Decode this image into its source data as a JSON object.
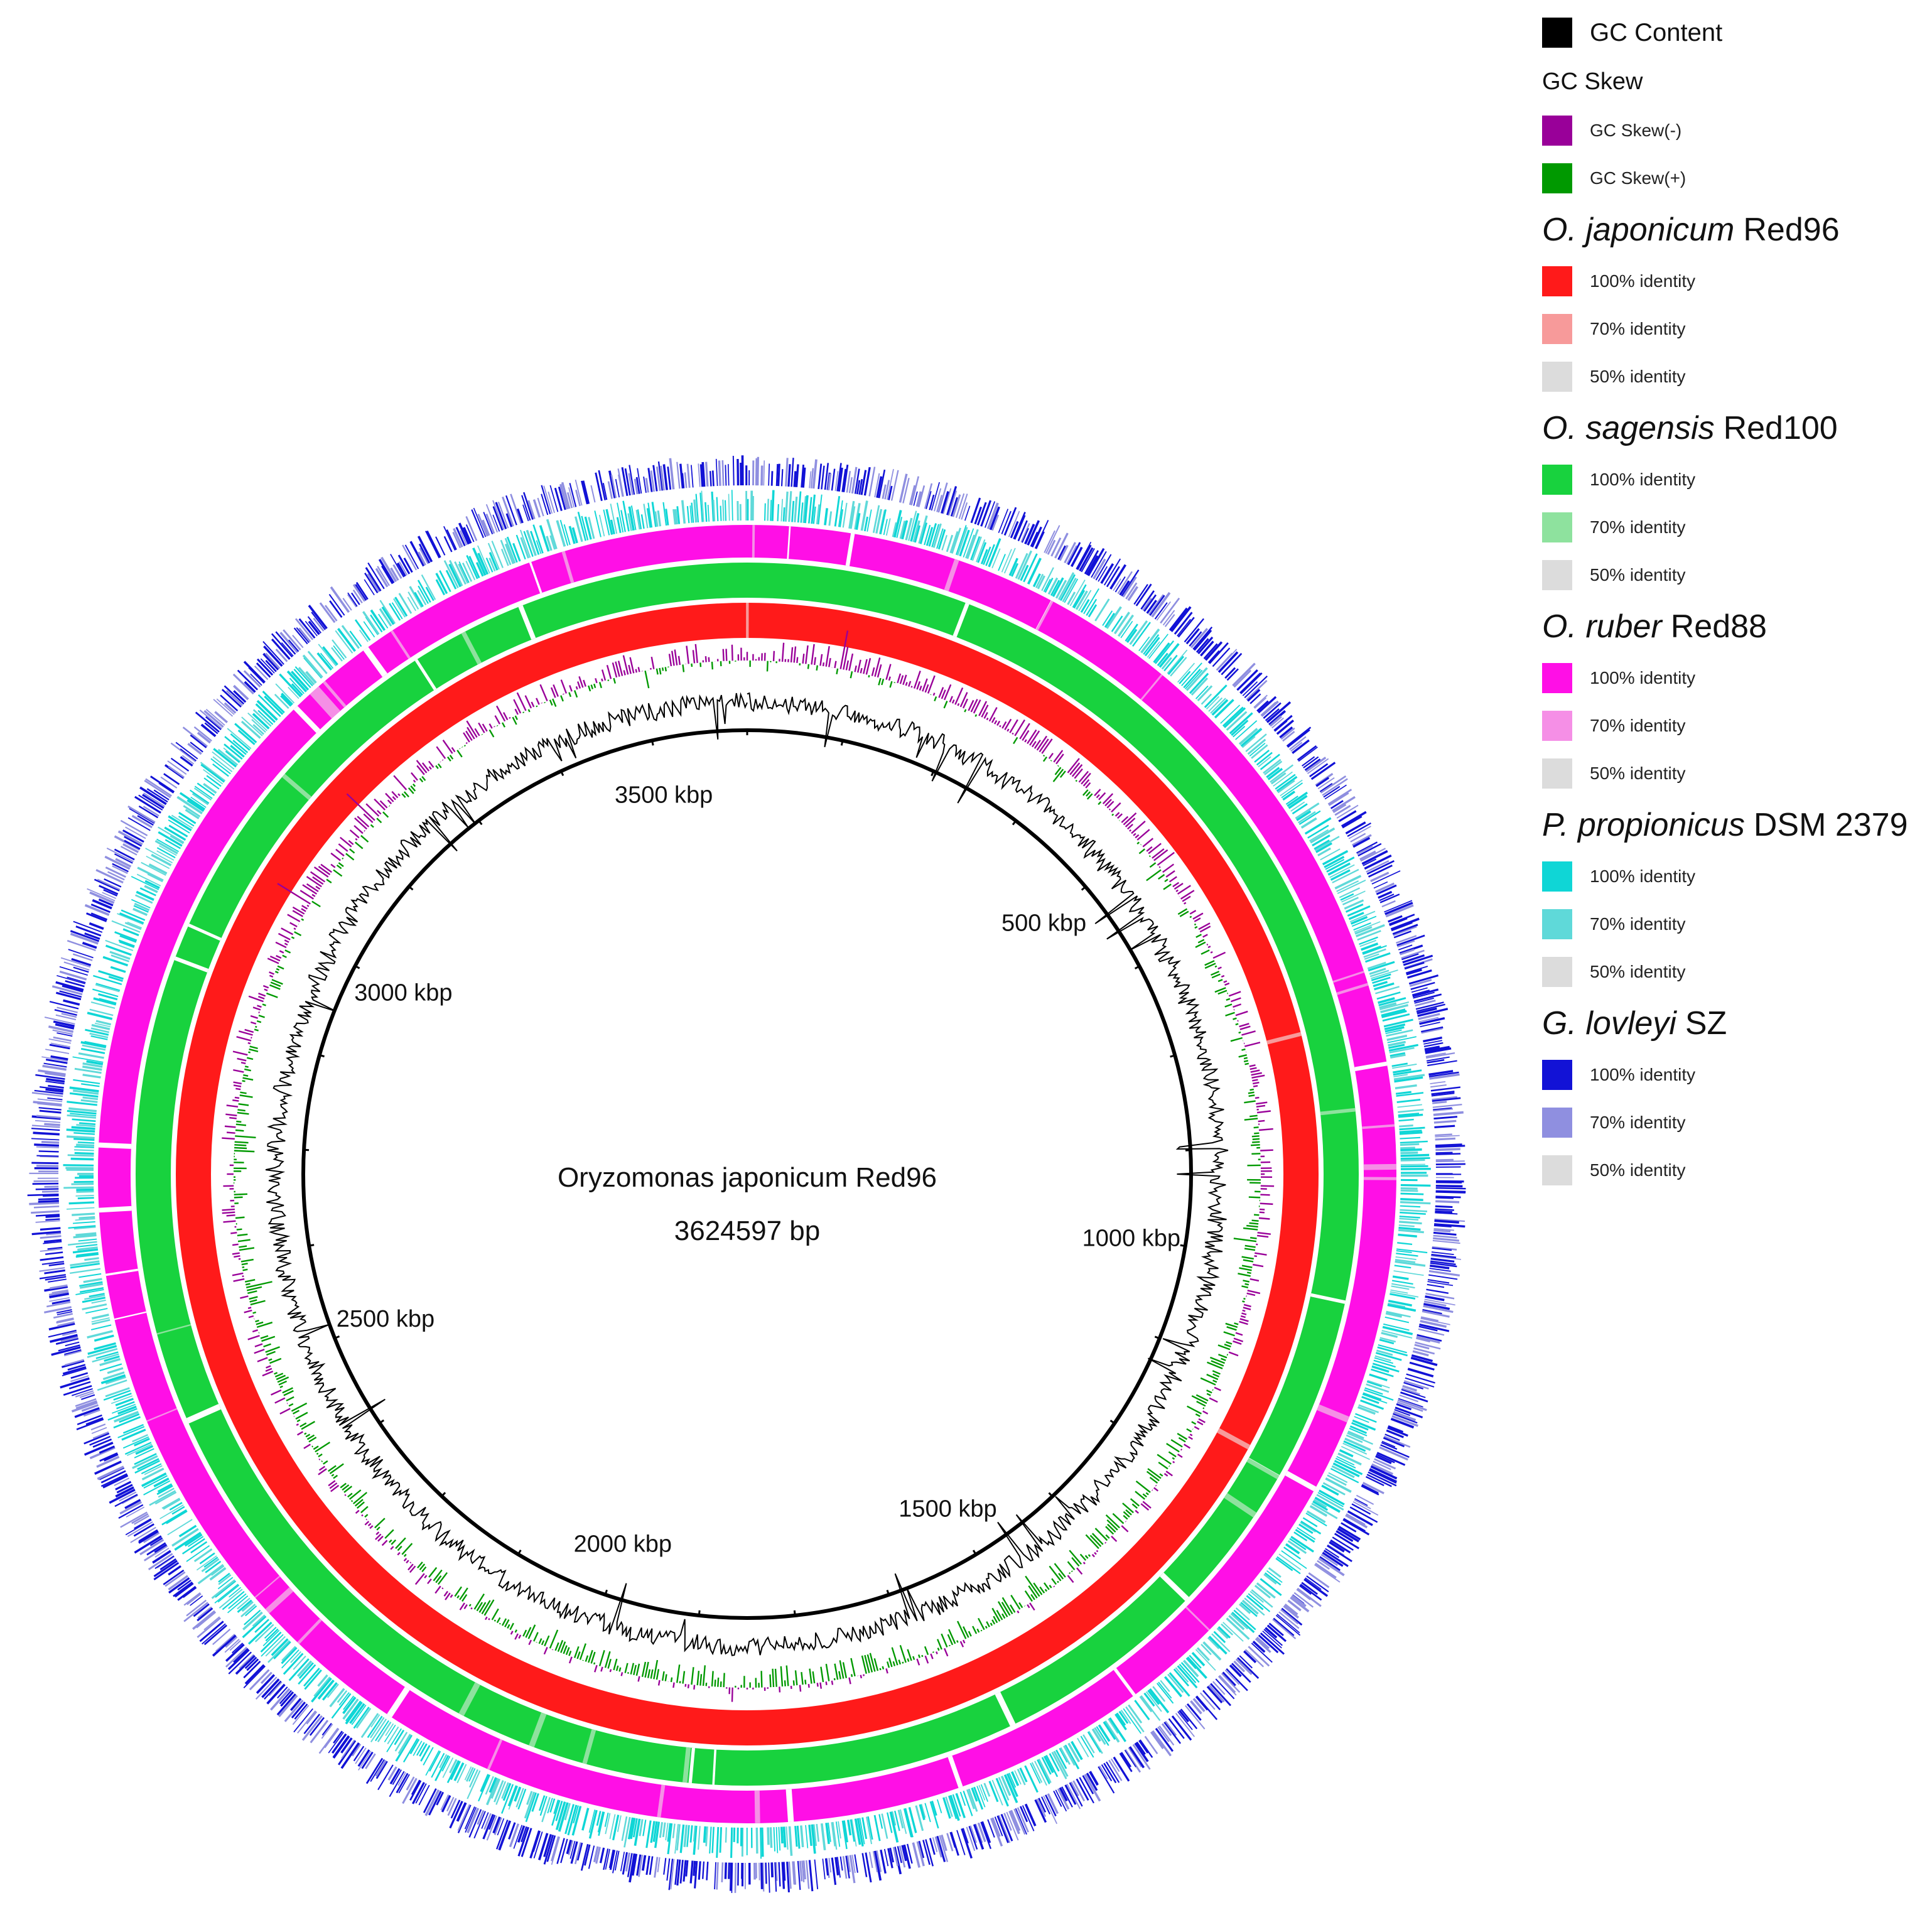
{
  "genome": {
    "name": "Oryzomonas japonicum Red96",
    "length_label": "3624597 bp",
    "length_bp": 3624597
  },
  "scale_labels": [
    {
      "kbp": 500,
      "label": "500 kbp"
    },
    {
      "kbp": 1000,
      "label": "1000 kbp"
    },
    {
      "kbp": 1500,
      "label": "1500 kbp"
    },
    {
      "kbp": 2000,
      "label": "2000 kbp"
    },
    {
      "kbp": 2500,
      "label": "2500 kbp"
    },
    {
      "kbp": 3000,
      "label": "3000 kbp"
    },
    {
      "kbp": 3500,
      "label": "3500 kbp"
    }
  ],
  "legend": {
    "gc_content": {
      "label": "GC Content",
      "color": "#000000"
    },
    "gc_skew": {
      "title": "GC Skew",
      "neg": {
        "label": "GC Skew(-)",
        "color": "#990099"
      },
      "pos": {
        "label": "GC Skew(+)",
        "color": "#009900"
      }
    },
    "genomes": [
      {
        "italic": "O. japonicum",
        "strain": "Red96",
        "items": [
          {
            "label": "100% identity",
            "color": "#ff1a1a"
          },
          {
            "label": "70% identity",
            "color": "#f79a9a"
          },
          {
            "label": "50% identity",
            "color": "#dcdcdc"
          }
        ]
      },
      {
        "italic": "O. sagensis",
        "strain": "Red100",
        "items": [
          {
            "label": "100% identity",
            "color": "#18d23e"
          },
          {
            "label": "70% identity",
            "color": "#8ee29e"
          },
          {
            "label": "50% identity",
            "color": "#dcdcdc"
          }
        ]
      },
      {
        "italic": "O. ruber",
        "strain": "Red88",
        "items": [
          {
            "label": "100% identity",
            "color": "#ff0fe6"
          },
          {
            "label": "70% identity",
            "color": "#f58fe6"
          },
          {
            "label": "50% identity",
            "color": "#dcdcdc"
          }
        ]
      },
      {
        "italic": "P. propionicus",
        "strain": "DSM 2379",
        "items": [
          {
            "label": "100% identity",
            "color": "#0fd6d6"
          },
          {
            "label": "70% identity",
            "color": "#5fd9d9"
          },
          {
            "label": "50% identity",
            "color": "#dcdcdc"
          }
        ]
      },
      {
        "italic": "G. lovleyi",
        "strain": "SZ",
        "items": [
          {
            "label": "100% identity",
            "color": "#1212d6"
          },
          {
            "label": "70% identity",
            "color": "#8f8fe0"
          },
          {
            "label": "50% identity",
            "color": "#dcdcdc"
          }
        ]
      }
    ]
  }
}
